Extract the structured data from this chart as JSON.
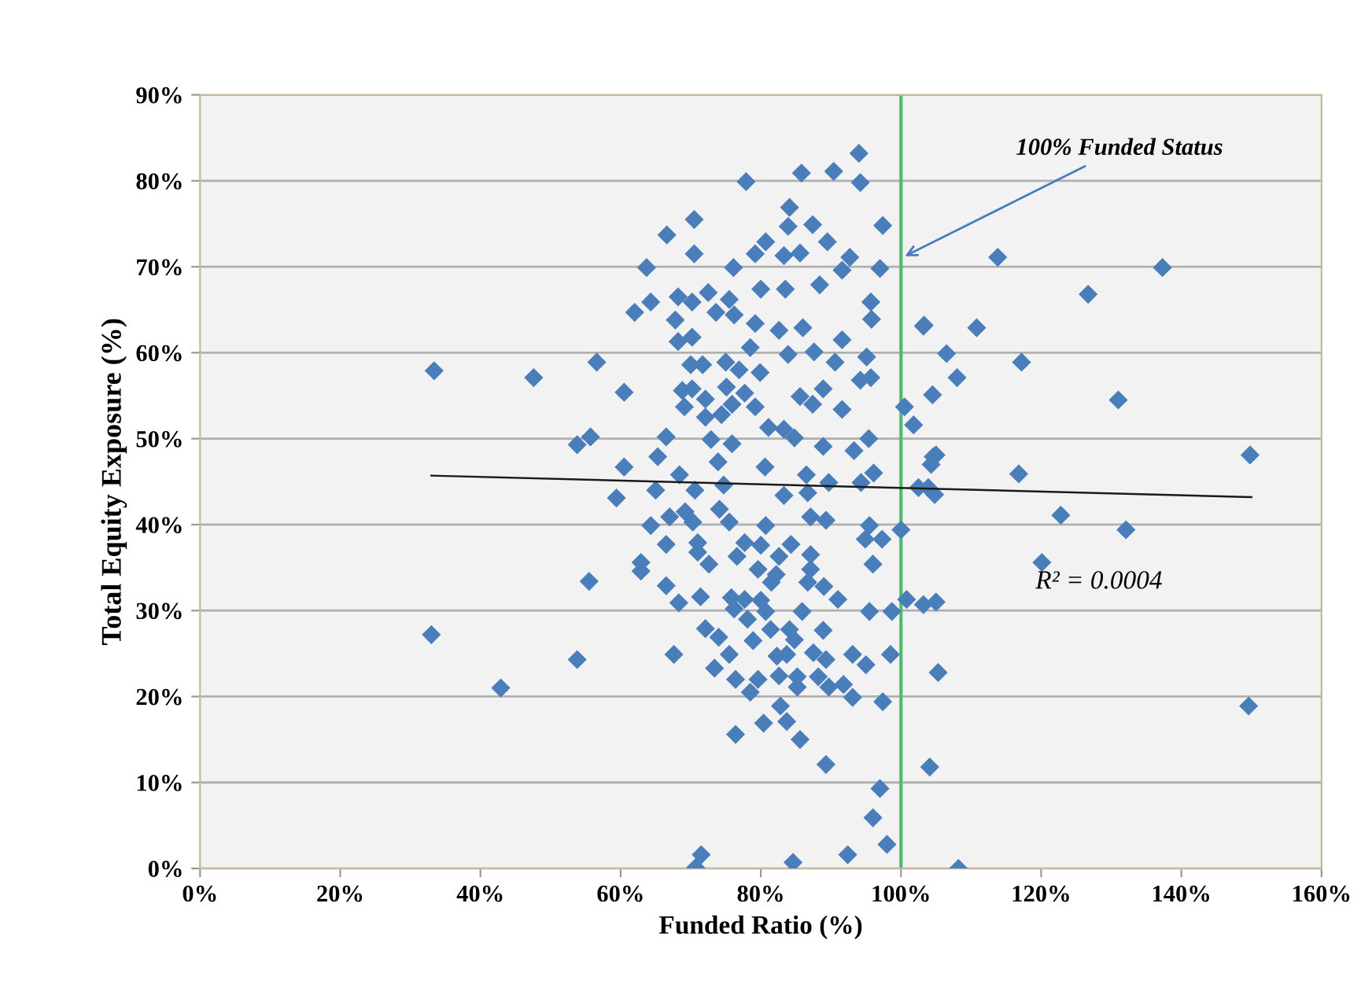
{
  "chart_data": {
    "type": "scatter",
    "xlabel": "Funded Ratio (%)",
    "ylabel": "Total Equity Exposure (%)",
    "xlim": [
      0,
      160
    ],
    "ylim": [
      0,
      90
    ],
    "xticks": [
      {
        "value": 0,
        "label": "0%"
      },
      {
        "value": 20,
        "label": "20%"
      },
      {
        "value": 40,
        "label": "40%"
      },
      {
        "value": 60,
        "label": "60%"
      },
      {
        "value": 80,
        "label": "80%"
      },
      {
        "value": 100,
        "label": "100%"
      },
      {
        "value": 120,
        "label": "120%"
      },
      {
        "value": 140,
        "label": "140%"
      },
      {
        "value": 160,
        "label": "160%"
      }
    ],
    "yticks": [
      {
        "value": 0,
        "label": "0%"
      },
      {
        "value": 10,
        "label": "10%"
      },
      {
        "value": 20,
        "label": "20%"
      },
      {
        "value": 30,
        "label": "30%"
      },
      {
        "value": 40,
        "label": "40%"
      },
      {
        "value": 50,
        "label": "50%"
      },
      {
        "value": 60,
        "label": "60%"
      },
      {
        "value": 70,
        "label": "70%"
      },
      {
        "value": 80,
        "label": "80%"
      },
      {
        "value": 90,
        "label": "90%"
      }
    ],
    "grid": "y",
    "marker": "diamond",
    "legend": false,
    "series": [
      {
        "color": "#4a7ebb",
        "x": [
          33.4,
          47.6,
          56.6,
          60.5,
          53.8,
          55.7,
          63.7,
          66.6,
          70.5,
          70.5,
          77.9,
          85.8,
          90.4,
          94,
          94.2,
          84.1,
          83.9,
          87.4,
          97.4,
          80.7,
          79.2,
          83.3,
          85.6,
          89.5,
          92.7,
          91.6,
          97,
          76.1,
          80,
          83.5,
          88.4,
          95.7,
          95.8,
          103.2,
          62,
          64.3,
          68.2,
          70.2,
          72.5,
          73.6,
          75.5,
          76.2,
          67.8,
          68.2,
          70.2,
          79.2,
          82.6,
          86,
          91.6,
          78.5,
          83.9,
          87.6,
          90.6,
          95.1,
          95.7,
          94.2,
          75,
          76.9,
          79.9,
          70,
          71.7,
          68.8,
          70.2,
          72.1,
          75.1,
          77.7,
          79.2,
          69.1,
          72.1,
          74.4,
          75.9,
          85.6,
          87.4,
          88.9,
          91.6,
          104.5,
          100.5,
          101.8,
          66.5,
          72.9,
          75.9,
          81.1,
          83.3,
          84.8,
          88.9,
          93.3,
          95.4,
          104.6,
          60.5,
          65.3,
          68.4,
          73.9,
          80.6,
          86.5,
          89.7,
          94.3,
          96.1,
          59.4,
          65,
          70.6,
          74.7,
          83.3,
          86.7,
          102.5,
          64.3,
          67,
          69.2,
          70.3,
          74.1,
          75.5,
          80.7,
          87.1,
          89.3,
          95.5,
          94.9,
          97.3,
          100,
          66.5,
          71,
          71,
          77.7,
          80,
          76.6,
          82.6,
          84.3,
          87.1,
          72.6,
          62.9,
          62.9,
          79.6,
          82.2,
          87.1,
          96,
          55.5,
          66.5,
          71.4,
          68.3,
          75.8,
          77.7,
          80,
          81.5,
          86.7,
          89,
          91,
          76.2,
          80.7,
          85.9,
          95.5,
          98.7,
          100.8,
          103.2,
          105,
          33,
          72.1,
          74,
          78.1,
          78.9,
          81.4,
          84.1,
          84.8,
          88.9,
          67.6,
          75.5,
          82.3,
          83.7,
          87.5,
          89.3,
          93.1,
          95,
          98.5,
          53.8,
          73.4,
          76.4,
          78.5,
          79.6,
          82.6,
          85.2,
          85.2,
          88.2,
          89.7,
          91.8,
          93.1,
          97.4,
          105.3,
          42.9,
          82.8,
          76.4,
          80.4,
          83.7,
          85.6,
          89.3,
          104.1,
          97,
          96,
          98,
          92.4,
          84.6,
          71.5,
          70.7,
          113.8,
          137.3,
          126.7,
          103.3,
          110.8,
          106.5,
          117.2,
          108,
          131,
          105,
          104.3,
          149.8,
          116.8,
          103.9,
          104.8,
          122.8,
          132.1,
          120.1,
          149.6,
          108.2
        ],
        "values": [
          57.9,
          57.1,
          58.9,
          55.4,
          49.3,
          50.2,
          69.9,
          73.7,
          75.5,
          71.5,
          79.9,
          80.9,
          81.1,
          83.2,
          79.8,
          76.9,
          74.7,
          74.9,
          74.8,
          72.9,
          71.5,
          71.3,
          71.6,
          72.9,
          71.1,
          69.6,
          69.8,
          69.9,
          67.4,
          67.4,
          67.9,
          65.9,
          63.9,
          63.1,
          64.7,
          65.9,
          66.5,
          65.9,
          67,
          64.7,
          66.2,
          64.4,
          63.8,
          61.3,
          61.8,
          63.4,
          62.6,
          62.9,
          61.5,
          60.6,
          59.8,
          60.1,
          58.9,
          59.5,
          57.1,
          56.8,
          58.9,
          58,
          57.7,
          58.6,
          58.6,
          55.6,
          55.8,
          54.6,
          56,
          55.3,
          53.7,
          53.7,
          52.5,
          52.8,
          54,
          54.9,
          54,
          55.8,
          53.4,
          55.1,
          53.7,
          51.6,
          50.2,
          49.9,
          49.4,
          51.3,
          51.1,
          50.1,
          49.1,
          48.6,
          50,
          47.9,
          46.7,
          47.9,
          45.8,
          47.3,
          46.7,
          45.8,
          44.9,
          44.9,
          46,
          43.1,
          44,
          44,
          44.6,
          43.4,
          43.7,
          44.3,
          39.9,
          40.9,
          41.5,
          40.3,
          41.8,
          40.3,
          39.9,
          40.9,
          40.5,
          39.9,
          38.3,
          38.3,
          39.4,
          37.7,
          37.9,
          36.8,
          37.9,
          37.6,
          36.3,
          36.3,
          37.7,
          36.5,
          35.4,
          35.6,
          34.6,
          34.8,
          34.2,
          34.8,
          35.4,
          33.4,
          32.9,
          31.6,
          30.9,
          31.5,
          31.3,
          31.2,
          33.3,
          33.3,
          32.8,
          31.3,
          30.2,
          29.9,
          29.9,
          29.9,
          29.9,
          31.3,
          30.7,
          31,
          27.2,
          27.9,
          26.9,
          29,
          26.5,
          27.8,
          27.8,
          26.6,
          27.7,
          24.9,
          24.9,
          24.7,
          24.9,
          25.1,
          24.3,
          24.9,
          23.7,
          24.9,
          24.3,
          23.3,
          22,
          20.5,
          22,
          22.4,
          22.3,
          21.1,
          22.3,
          21.1,
          21.4,
          19.9,
          19.4,
          22.8,
          21,
          18.9,
          15.6,
          16.9,
          17.1,
          15,
          12.1,
          11.8,
          9.3,
          5.9,
          2.8,
          1.6,
          0.7,
          1.6,
          0.1,
          71.1,
          69.9,
          66.8,
          63.2,
          62.9,
          59.9,
          58.9,
          57.1,
          54.5,
          48.1,
          47,
          48.1,
          45.9,
          44.3,
          43.5,
          41.1,
          39.4,
          35.6,
          18.9,
          0
        ]
      },
      {
        "type": "line",
        "color": "#1a1a1a",
        "marker": "none",
        "x": [
          33,
          150
        ],
        "values": [
          45.7,
          43.2
        ]
      }
    ],
    "ref_lines": [
      {
        "axis": "x",
        "value": 100,
        "color": "#4cbb6c"
      }
    ],
    "annotations": [
      {
        "text": "100% Funded Status",
        "x": 100,
        "y": 71
      },
      "R² = 0.0004"
    ]
  }
}
